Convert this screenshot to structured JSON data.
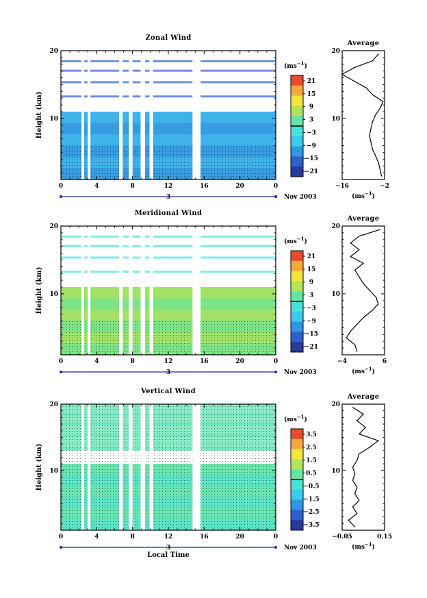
{
  "chart_data": [
    {
      "type": "heatmap",
      "title": "Zonal Wind",
      "ylabel": "Height (km)",
      "xticks": [
        "0",
        "4",
        "8",
        "12",
        "16",
        "20",
        "0"
      ],
      "yticks": [
        "20",
        "10"
      ],
      "xlim": [
        0,
        24
      ],
      "ylim": [
        1,
        20
      ],
      "date_marker": "3",
      "date_label": "Nov 2003",
      "colorbar": {
        "unit": "(ms",
        "unit_exp": "−1",
        "unit_close": ")",
        "ticks": [
          "21",
          "15",
          "9",
          "3",
          "−3",
          "−9",
          "−15",
          "−21"
        ]
      },
      "profile": {
        "title": "Average",
        "xticks": [
          "−16",
          "−2"
        ],
        "xlim": [
          -16,
          -2
        ],
        "yticks": [
          "20",
          "10"
        ],
        "xlabel": "(ms",
        "xlabel_exp": "−1",
        "xlabel_close": ")",
        "heights": [
          19.5,
          18.5,
          17.5,
          16.5,
          15.5,
          14.5,
          13.5,
          12.5,
          11.5,
          10.5,
          9.5,
          8.5,
          7.5,
          6.5,
          5.5,
          4.5,
          3.5,
          2.5,
          1.5
        ],
        "values": [
          -4,
          -6,
          -12,
          -16,
          -12,
          -8,
          -6,
          -2.5,
          -3.5,
          -5,
          -6,
          -6.5,
          -7,
          -6.5,
          -6,
          -5,
          -4,
          -3.5,
          -3
        ]
      }
    },
    {
      "type": "heatmap",
      "title": "Meridional Wind",
      "ylabel": "Height (km)",
      "xticks": [
        "0",
        "4",
        "8",
        "12",
        "16",
        "20",
        "0"
      ],
      "yticks": [
        "20",
        "10"
      ],
      "xlim": [
        0,
        24
      ],
      "ylim": [
        1,
        20
      ],
      "date_marker": "3",
      "date_label": "Nov 2003",
      "colorbar": {
        "unit": "(ms",
        "unit_exp": "−1",
        "unit_close": ")",
        "ticks": [
          "21",
          "15",
          "9",
          "3",
          "−3",
          "−9",
          "−15",
          "−21"
        ]
      },
      "profile": {
        "title": "Average",
        "xticks": [
          "−4",
          "6"
        ],
        "xlim": [
          -4,
          6
        ],
        "yticks": [
          "20",
          "10"
        ],
        "xlabel": "(ms",
        "xlabel_exp": "−1",
        "xlabel_close": ")",
        "heights": [
          19.5,
          18.5,
          17.5,
          16.5,
          15.5,
          14.5,
          13.5,
          12.5,
          11.5,
          10.5,
          9.5,
          8.5,
          7.5,
          6.5,
          5.5,
          4.5,
          3.5,
          2.5,
          1.5
        ],
        "values": [
          5,
          0,
          -2,
          0,
          -2,
          1,
          -1,
          0,
          1,
          2.5,
          4,
          4.5,
          3,
          1,
          -0.5,
          -2,
          -3,
          -1,
          -0.5
        ]
      }
    },
    {
      "type": "heatmap",
      "title": "Vertical Wind",
      "ylabel": "Height (km)",
      "xlabel": "Local Time",
      "xticks": [
        "0",
        "4",
        "8",
        "12",
        "16",
        "20",
        "0"
      ],
      "yticks": [
        "20",
        "10"
      ],
      "xlim": [
        0,
        24
      ],
      "ylim": [
        1,
        20
      ],
      "date_marker": "3",
      "date_label": "Nov 2003",
      "colorbar": {
        "unit": "(ms",
        "unit_exp": "−1",
        "unit_close": ")",
        "ticks": [
          "3.5",
          "2.5",
          "1.5",
          "0.5",
          "−0.5",
          "−1.5",
          "−2.5",
          "−3.5"
        ]
      },
      "profile": {
        "title": "Average",
        "xticks": [
          "−0.05",
          "0.15"
        ],
        "xlim": [
          -0.05,
          0.15
        ],
        "yticks": [
          "20",
          "10"
        ],
        "xlabel": "(ms",
        "xlabel_exp": "−1",
        "xlabel_close": ")",
        "heights": [
          19.5,
          18.5,
          17.5,
          16.5,
          15.5,
          14.5,
          13.5,
          12.5,
          11.5,
          10.5,
          9.5,
          8.5,
          7.5,
          6.5,
          5.5,
          4.5,
          3.5,
          2.5,
          1.5
        ],
        "values": [
          0.0,
          0.05,
          0.02,
          0.06,
          0.03,
          0.12,
          0.08,
          0.03,
          0.02,
          0.0,
          0.01,
          0.0,
          0.02,
          0.01,
          0.03,
          0.0,
          0.02,
          -0.02,
          0.01
        ]
      }
    }
  ],
  "colors": {
    "wind_scale": [
      "#283a9a",
      "#2f62c8",
      "#2e98e0",
      "#3ccaf0",
      "#48e3d8",
      "#66e6a4",
      "#b4e45a",
      "#f2e63c",
      "#f6a83a",
      "#ea4a2e"
    ],
    "panel_fill": {
      "zonal": "#3fa0e4",
      "meridional": "#90e070",
      "vertical": "#6ce6b8"
    },
    "zero_line": "#000000"
  }
}
